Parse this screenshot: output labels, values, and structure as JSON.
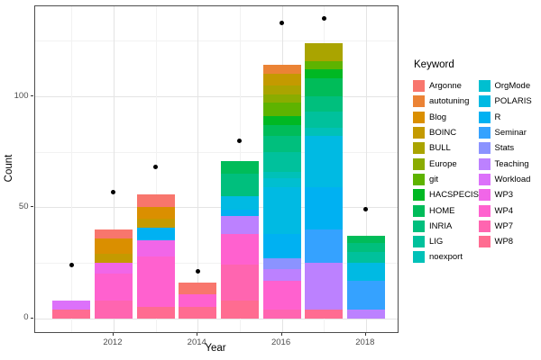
{
  "axes": {
    "x_title": "Year",
    "y_title": "Count",
    "y_ticks": [
      0,
      50,
      100
    ],
    "y_minor": [
      25,
      75,
      125
    ],
    "x_ticks": [
      2012,
      2014,
      2016,
      2018
    ],
    "x_minor": [
      2011,
      2013,
      2015,
      2017
    ]
  },
  "legend": {
    "title": "Keyword",
    "column_split": 12
  },
  "style": {
    "panel_border": "#4d4d4d",
    "grid_major": "#e4e4e4",
    "grid_minor": "#f2f2f2",
    "point_color": "#000000",
    "tick_text": "#4d4d4d"
  },
  "chart_data": {
    "type": "bar",
    "stacked": true,
    "title": "",
    "xlabel": "Year",
    "ylabel": "Count",
    "ylim": [
      0,
      140
    ],
    "grid": true,
    "legend_position": "right",
    "keywords": [
      {
        "label": "Argonne",
        "color": "#F8766D"
      },
      {
        "label": "autotuning",
        "color": "#EB8335"
      },
      {
        "label": "Blog",
        "color": "#DA8F00"
      },
      {
        "label": "BOINC",
        "color": "#C49A00"
      },
      {
        "label": "BULL",
        "color": "#AAA400"
      },
      {
        "label": "Europe",
        "color": "#8AAC00"
      },
      {
        "label": "git",
        "color": "#5EB300"
      },
      {
        "label": "HACSPECIS",
        "color": "#00B823"
      },
      {
        "label": "HOME",
        "color": "#00BC59"
      },
      {
        "label": "INRIA",
        "color": "#00BF7D"
      },
      {
        "label": "LIG",
        "color": "#00C19C"
      },
      {
        "label": "noexport",
        "color": "#00C1B8"
      },
      {
        "label": "OrgMode",
        "color": "#00BFD0"
      },
      {
        "label": "POLARIS",
        "color": "#00BAE3"
      },
      {
        "label": "R",
        "color": "#00B1F2"
      },
      {
        "label": "Seminar",
        "color": "#35A2FF"
      },
      {
        "label": "Stats",
        "color": "#8B93FF"
      },
      {
        "label": "Teaching",
        "color": "#BC81FF"
      },
      {
        "label": "Workload",
        "color": "#DC71FA"
      },
      {
        "label": "WP3",
        "color": "#F166E8"
      },
      {
        "label": "WP4",
        "color": "#FF61CF"
      },
      {
        "label": "WP7",
        "color": "#FF65B0"
      },
      {
        "label": "WP8",
        "color": "#FF6C91"
      }
    ],
    "bars": [
      {
        "year": 2011,
        "total": 8,
        "segments": [
          {
            "keyword": "WP8",
            "value": 4
          },
          {
            "keyword": "Workload",
            "value": 4
          }
        ]
      },
      {
        "year": 2012,
        "total": 40,
        "segments": [
          {
            "keyword": "WP7",
            "value": 8
          },
          {
            "keyword": "WP4",
            "value": 12
          },
          {
            "keyword": "WP3",
            "value": 5
          },
          {
            "keyword": "BOINC",
            "value": 4
          },
          {
            "keyword": "Blog",
            "value": 7
          },
          {
            "keyword": "Argonne",
            "value": 4
          }
        ]
      },
      {
        "year": 2013,
        "total": 56,
        "segments": [
          {
            "keyword": "WP8",
            "value": 5
          },
          {
            "keyword": "WP4",
            "value": 23
          },
          {
            "keyword": "WP3",
            "value": 7
          },
          {
            "keyword": "R",
            "value": 6
          },
          {
            "keyword": "BOINC",
            "value": 4
          },
          {
            "keyword": "Blog",
            "value": 5
          },
          {
            "keyword": "Argonne",
            "value": 6
          }
        ]
      },
      {
        "year": 2014,
        "total": 16,
        "segments": [
          {
            "keyword": "WP8",
            "value": 5
          },
          {
            "keyword": "WP4",
            "value": 6
          },
          {
            "keyword": "Argonne",
            "value": 5
          }
        ]
      },
      {
        "year": 2015,
        "total": 71,
        "segments": [
          {
            "keyword": "WP8",
            "value": 8
          },
          {
            "keyword": "WP7",
            "value": 16
          },
          {
            "keyword": "WP4",
            "value": 14
          },
          {
            "keyword": "Teaching",
            "value": 8
          },
          {
            "keyword": "R",
            "value": 3
          },
          {
            "keyword": "POLARIS",
            "value": 6
          },
          {
            "keyword": "INRIA",
            "value": 10
          },
          {
            "keyword": "HOME",
            "value": 6
          }
        ]
      },
      {
        "year": 2016,
        "total": 114,
        "segments": [
          {
            "keyword": "WP7",
            "value": 4
          },
          {
            "keyword": "WP4",
            "value": 13
          },
          {
            "keyword": "Teaching",
            "value": 5
          },
          {
            "keyword": "Stats",
            "value": 5
          },
          {
            "keyword": "R",
            "value": 11
          },
          {
            "keyword": "POLARIS",
            "value": 21
          },
          {
            "keyword": "OrgMode",
            "value": 4
          },
          {
            "keyword": "noexport",
            "value": 3
          },
          {
            "keyword": "LIG",
            "value": 9
          },
          {
            "keyword": "INRIA",
            "value": 7
          },
          {
            "keyword": "HOME",
            "value": 5
          },
          {
            "keyword": "HACSPECIS",
            "value": 4
          },
          {
            "keyword": "git",
            "value": 6
          },
          {
            "keyword": "Europe",
            "value": 4
          },
          {
            "keyword": "BULL",
            "value": 4
          },
          {
            "keyword": "BOINC",
            "value": 5
          },
          {
            "keyword": "autotuning",
            "value": 4
          }
        ]
      },
      {
        "year": 2017,
        "total": 124,
        "segments": [
          {
            "keyword": "WP8",
            "value": 4
          },
          {
            "keyword": "Teaching",
            "value": 21
          },
          {
            "keyword": "Seminar",
            "value": 15
          },
          {
            "keyword": "R",
            "value": 19
          },
          {
            "keyword": "POLARIS",
            "value": 23
          },
          {
            "keyword": "noexport",
            "value": 4
          },
          {
            "keyword": "LIG",
            "value": 7
          },
          {
            "keyword": "INRIA",
            "value": 7
          },
          {
            "keyword": "HOME",
            "value": 8
          },
          {
            "keyword": "HACSPECIS",
            "value": 4
          },
          {
            "keyword": "git",
            "value": 4
          },
          {
            "keyword": "BULL",
            "value": 8
          }
        ]
      },
      {
        "year": 2018,
        "total": 37,
        "segments": [
          {
            "keyword": "Teaching",
            "value": 4
          },
          {
            "keyword": "Seminar",
            "value": 13
          },
          {
            "keyword": "POLARIS",
            "value": 8
          },
          {
            "keyword": "LIG",
            "value": 5
          },
          {
            "keyword": "INRIA",
            "value": 4
          },
          {
            "keyword": "HOME",
            "value": 3
          }
        ]
      }
    ],
    "points": [
      {
        "year": 2011,
        "value": 24
      },
      {
        "year": 2012,
        "value": 57
      },
      {
        "year": 2013,
        "value": 68
      },
      {
        "year": 2014,
        "value": 21
      },
      {
        "year": 2015,
        "value": 80
      },
      {
        "year": 2016,
        "value": 133
      },
      {
        "year": 2017,
        "value": 135
      },
      {
        "year": 2018,
        "value": 49
      }
    ]
  }
}
